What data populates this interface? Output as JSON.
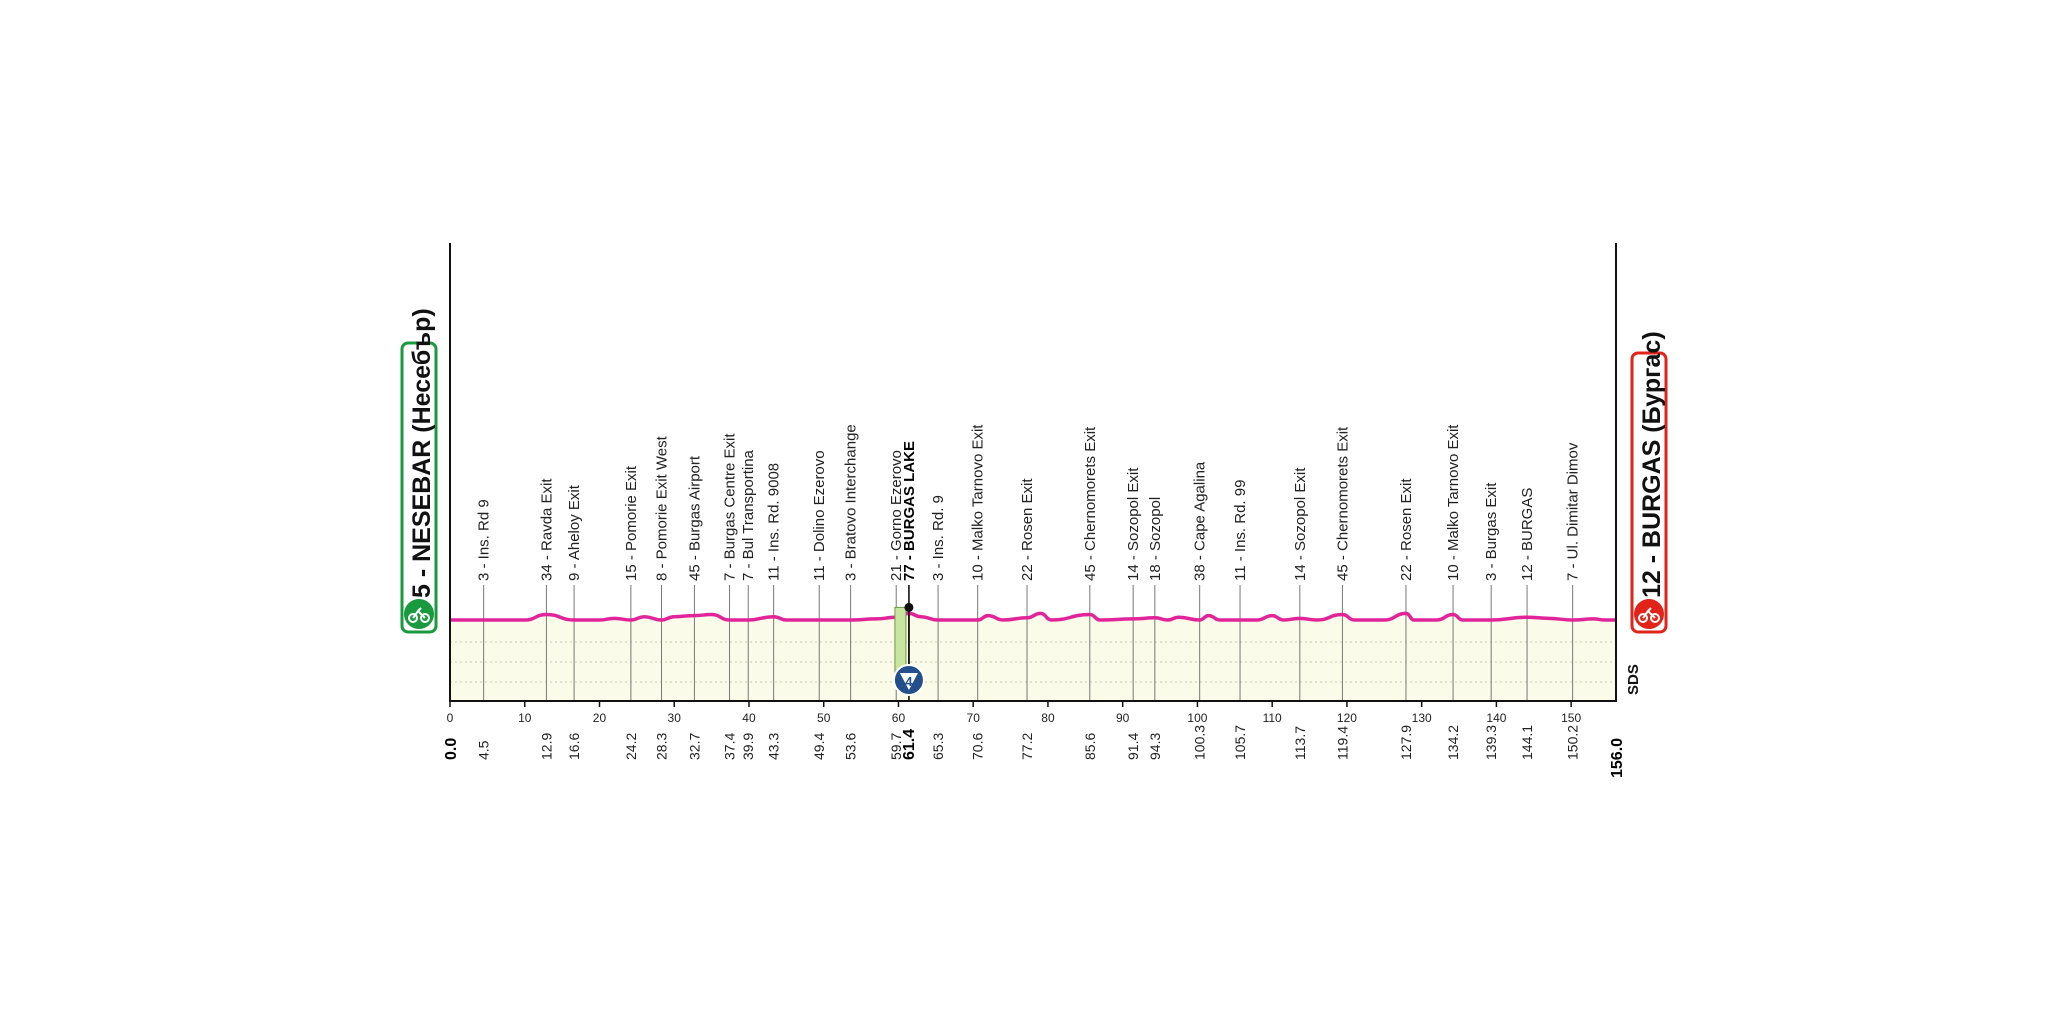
{
  "chart_data": {
    "type": "area",
    "start": {
      "label": "5 - NESEBAR (Несебър)",
      "km": "0.0",
      "color": "#1a9a3e"
    },
    "finish": {
      "label": "12 - BURGAS (Бургас)",
      "km": "156.0",
      "color": "#e2231a"
    },
    "profile_color": "#e2249b",
    "sds_label": "SDS",
    "xlim": [
      0,
      156
    ],
    "x_ticks": [
      0,
      10,
      20,
      30,
      40,
      50,
      60,
      70,
      80,
      90,
      100,
      110,
      120,
      130,
      140,
      150
    ],
    "waypoints": [
      {
        "km": "4.5",
        "label": "3 - Ins. Rd 9"
      },
      {
        "km": "12.9",
        "label": "34 - Ravda Exit"
      },
      {
        "km": "16.6",
        "label": "9 - Aheloy Exit"
      },
      {
        "km": "24.2",
        "label": "15 - Pomorie Exit"
      },
      {
        "km": "28.3",
        "label": "8 - Pomorie Exit West"
      },
      {
        "km": "32.7",
        "label": "45 - Burgas Airport"
      },
      {
        "km": "37.4",
        "label": "7 - Burgas Centre Exit"
      },
      {
        "km": "39.9",
        "label": "7 - Bul Transportina"
      },
      {
        "km": "43.3",
        "label": "11 - Ins. Rd. 9008"
      },
      {
        "km": "49.4",
        "label": "11 - Dolino Ezerovo"
      },
      {
        "km": "53.6",
        "label": "3 - Bratovo Interchange"
      },
      {
        "km": "59.7",
        "label": "21 - Gorno Ezerovo"
      },
      {
        "km": "61.4",
        "label": "77 - BURGAS LAKE",
        "bold": true
      },
      {
        "km": "65.3",
        "label": "3 - Ins. Rd. 9"
      },
      {
        "km": "70.6",
        "label": "10 - Malko Tarnovo Exit"
      },
      {
        "km": "77.2",
        "label": "22 - Rosen Exit"
      },
      {
        "km": "85.6",
        "label": "45 - Chernomorets Exit"
      },
      {
        "km": "91.4",
        "label": "14 - Sozopol Exit"
      },
      {
        "km": "94.3",
        "label": "18 - Sozopol"
      },
      {
        "km": "100.3",
        "label": "38 - Cape Agalina"
      },
      {
        "km": "105.7",
        "label": "11 - Ins. Rd. 99"
      },
      {
        "km": "113.7",
        "label": "14 - Sozopol Exit"
      },
      {
        "km": "119.4",
        "label": "45 - Chernomorets Exit"
      },
      {
        "km": "127.9",
        "label": "22 - Rosen Exit"
      },
      {
        "km": "134.2",
        "label": "10 - Malko Tarnovo Exit"
      },
      {
        "km": "139.3",
        "label": "3 - Burgas Exit"
      },
      {
        "km": "144.1",
        "label": "12 - BURGAS"
      },
      {
        "km": "150.2",
        "label": "7 - Ul. Dimitar Dimov"
      }
    ],
    "intermediate_sprint": {
      "km": 61.4,
      "label": "4"
    },
    "profile": [
      [
        0,
        0
      ],
      [
        4.5,
        0
      ],
      [
        10,
        0
      ],
      [
        12.9,
        1
      ],
      [
        16.6,
        0
      ],
      [
        20,
        0
      ],
      [
        22,
        0.3
      ],
      [
        24.2,
        0
      ],
      [
        26,
        0.6
      ],
      [
        28.3,
        0
      ],
      [
        30,
        0.6
      ],
      [
        32.7,
        0.8
      ],
      [
        35,
        1
      ],
      [
        37.4,
        0
      ],
      [
        39.9,
        0
      ],
      [
        43.3,
        0.6
      ],
      [
        45,
        0
      ],
      [
        49.4,
        0
      ],
      [
        53.6,
        0
      ],
      [
        57,
        0.2
      ],
      [
        59.7,
        0.5
      ],
      [
        61.4,
        1.2
      ],
      [
        63,
        0.6
      ],
      [
        65.3,
        0
      ],
      [
        70.6,
        0
      ],
      [
        72,
        0.8
      ],
      [
        74,
        0
      ],
      [
        77.2,
        0.4
      ],
      [
        79,
        1.2
      ],
      [
        80.5,
        0
      ],
      [
        85.6,
        1
      ],
      [
        87,
        0
      ],
      [
        91.4,
        0.2
      ],
      [
        94.3,
        0.4
      ],
      [
        96,
        0
      ],
      [
        97.5,
        0.5
      ],
      [
        100.3,
        0
      ],
      [
        101.5,
        0.8
      ],
      [
        103,
        0
      ],
      [
        105.7,
        0
      ],
      [
        108,
        0
      ],
      [
        110,
        0.8
      ],
      [
        111.5,
        0
      ],
      [
        113.7,
        0.3
      ],
      [
        116,
        0
      ],
      [
        119.4,
        1
      ],
      [
        121,
        0
      ],
      [
        125,
        0
      ],
      [
        127.9,
        1.2
      ],
      [
        129,
        0
      ],
      [
        132,
        0
      ],
      [
        134.2,
        1
      ],
      [
        135.5,
        0
      ],
      [
        139.3,
        0
      ],
      [
        144.1,
        0.5
      ],
      [
        147,
        0.3
      ],
      [
        150.2,
        0
      ],
      [
        153,
        0.2
      ],
      [
        154.5,
        0
      ],
      [
        156,
        0
      ]
    ]
  }
}
